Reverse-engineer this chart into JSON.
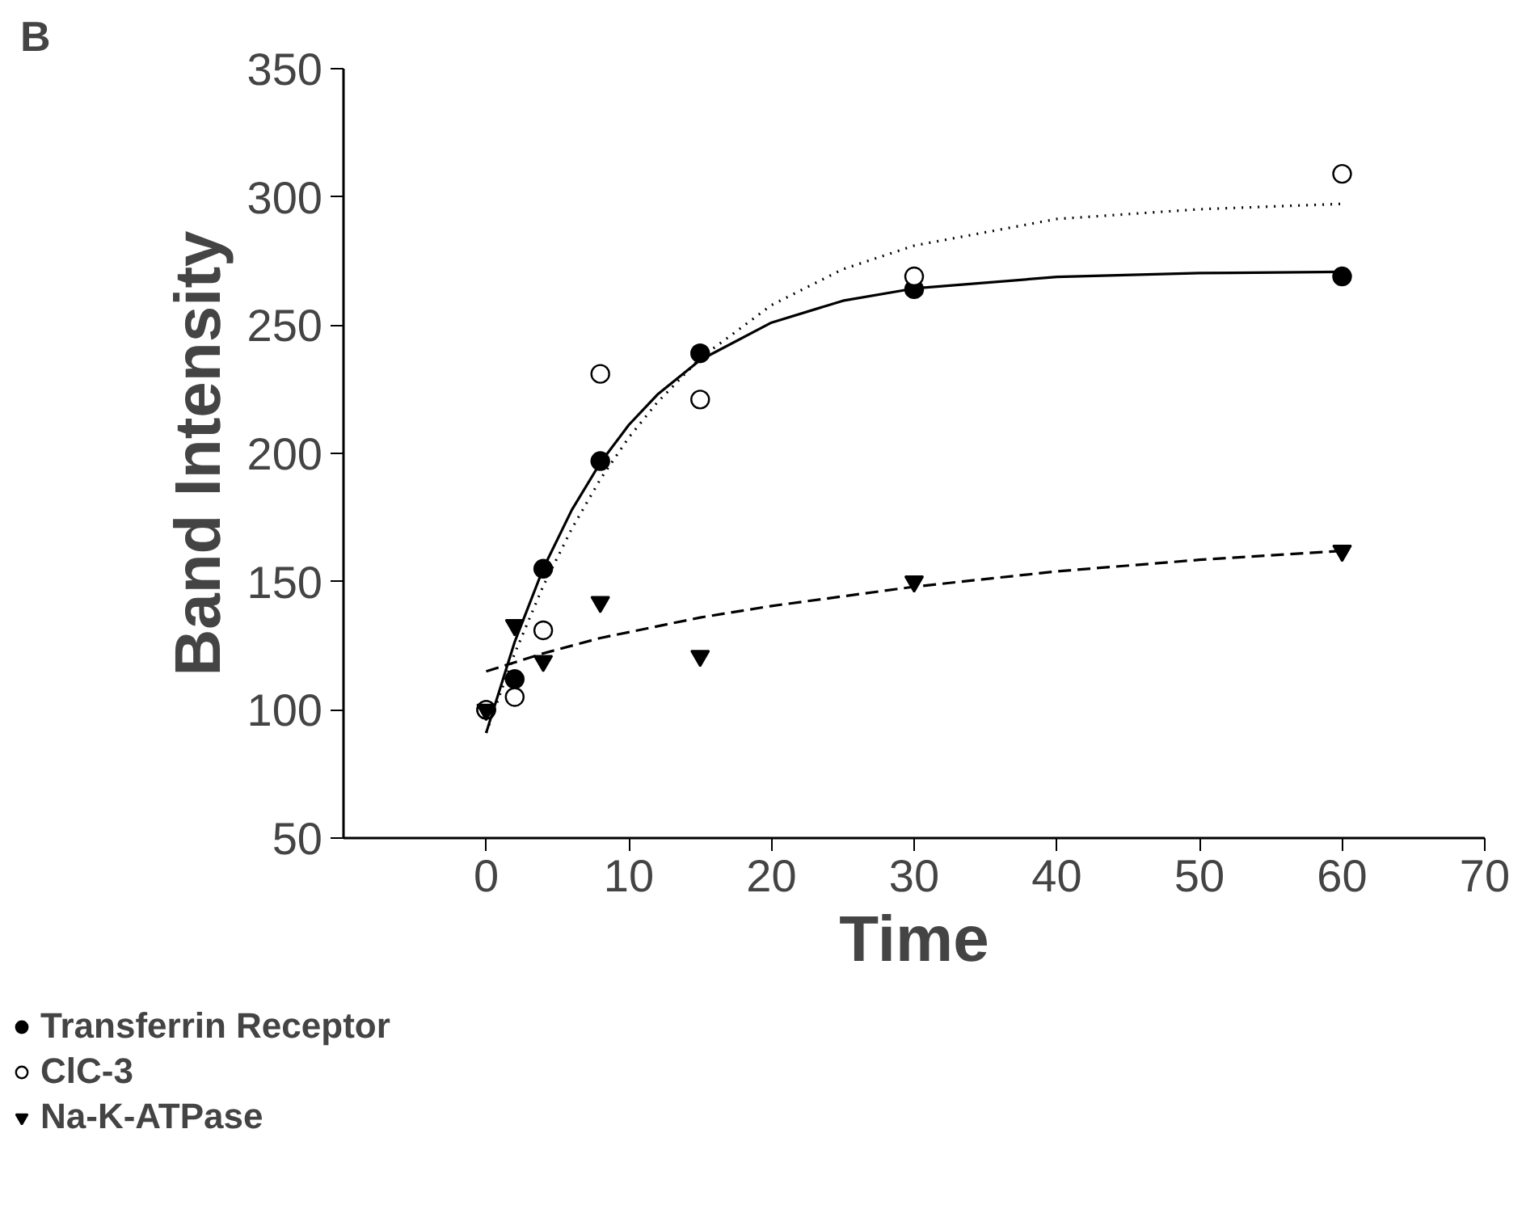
{
  "chart_data": {
    "type": "scatter",
    "title": "B",
    "xlabel": "Time",
    "ylabel": "Band Intensity",
    "xlim": [
      -10,
      70
    ],
    "xticks": [
      0,
      10,
      20,
      30,
      40,
      50,
      60,
      70
    ],
    "ylim": [
      50,
      350
    ],
    "yticks": [
      50,
      100,
      150,
      200,
      250,
      300,
      350
    ],
    "grid": false,
    "legend": "bottom left",
    "series": [
      {
        "name": "Transferrin Receptor",
        "marker": "circle",
        "color": "#000000",
        "x": [
          0,
          2,
          4,
          8,
          15,
          30,
          60
        ],
        "values": [
          100,
          112,
          155,
          197,
          239,
          264,
          269
        ]
      },
      {
        "name": "ClC-3",
        "marker": "circle",
        "color": "#ffffff",
        "x": [
          0,
          2,
          4,
          8,
          15,
          30,
          60
        ],
        "values": [
          100,
          105,
          131,
          231,
          221,
          269,
          309
        ]
      },
      {
        "name": "Na-K-ATPase",
        "marker": "triangle",
        "color": "#000000",
        "x": [
          0,
          2,
          4,
          8,
          15,
          30,
          60
        ],
        "values": [
          100,
          133,
          119,
          142,
          121,
          150,
          162
        ]
      },
      {
        "type": "line",
        "line_style": "solid",
        "color": "#000000",
        "x": [
          0,
          2,
          4,
          6,
          8,
          10,
          12,
          15,
          20,
          25,
          30,
          40,
          50,
          60
        ],
        "values": [
          91,
          126.5,
          155.1,
          177.9,
          196.3,
          211.1,
          222.9,
          236.4,
          251,
          259.5,
          264.3,
          268.8,
          270.3,
          270.8
        ]
      },
      {
        "type": "line",
        "line_style": "dotted",
        "color": "#000000",
        "x": [
          0,
          2,
          4,
          6,
          8,
          10,
          12,
          15,
          20,
          25,
          30,
          40,
          50,
          60
        ],
        "values": [
          91,
          122,
          148.3,
          170.6,
          189.9,
          206.2,
          219.9,
          237.1,
          257.8,
          271.8,
          281,
          291.4,
          295.2,
          297.3
        ]
      },
      {
        "type": "line",
        "line_style": "dashed",
        "color": "#000000",
        "x": [
          0,
          4,
          8,
          15,
          20,
          30,
          40,
          50,
          60
        ],
        "values": [
          115,
          122,
          128,
          136,
          140.5,
          148,
          154,
          158.5,
          162
        ]
      }
    ]
  }
}
